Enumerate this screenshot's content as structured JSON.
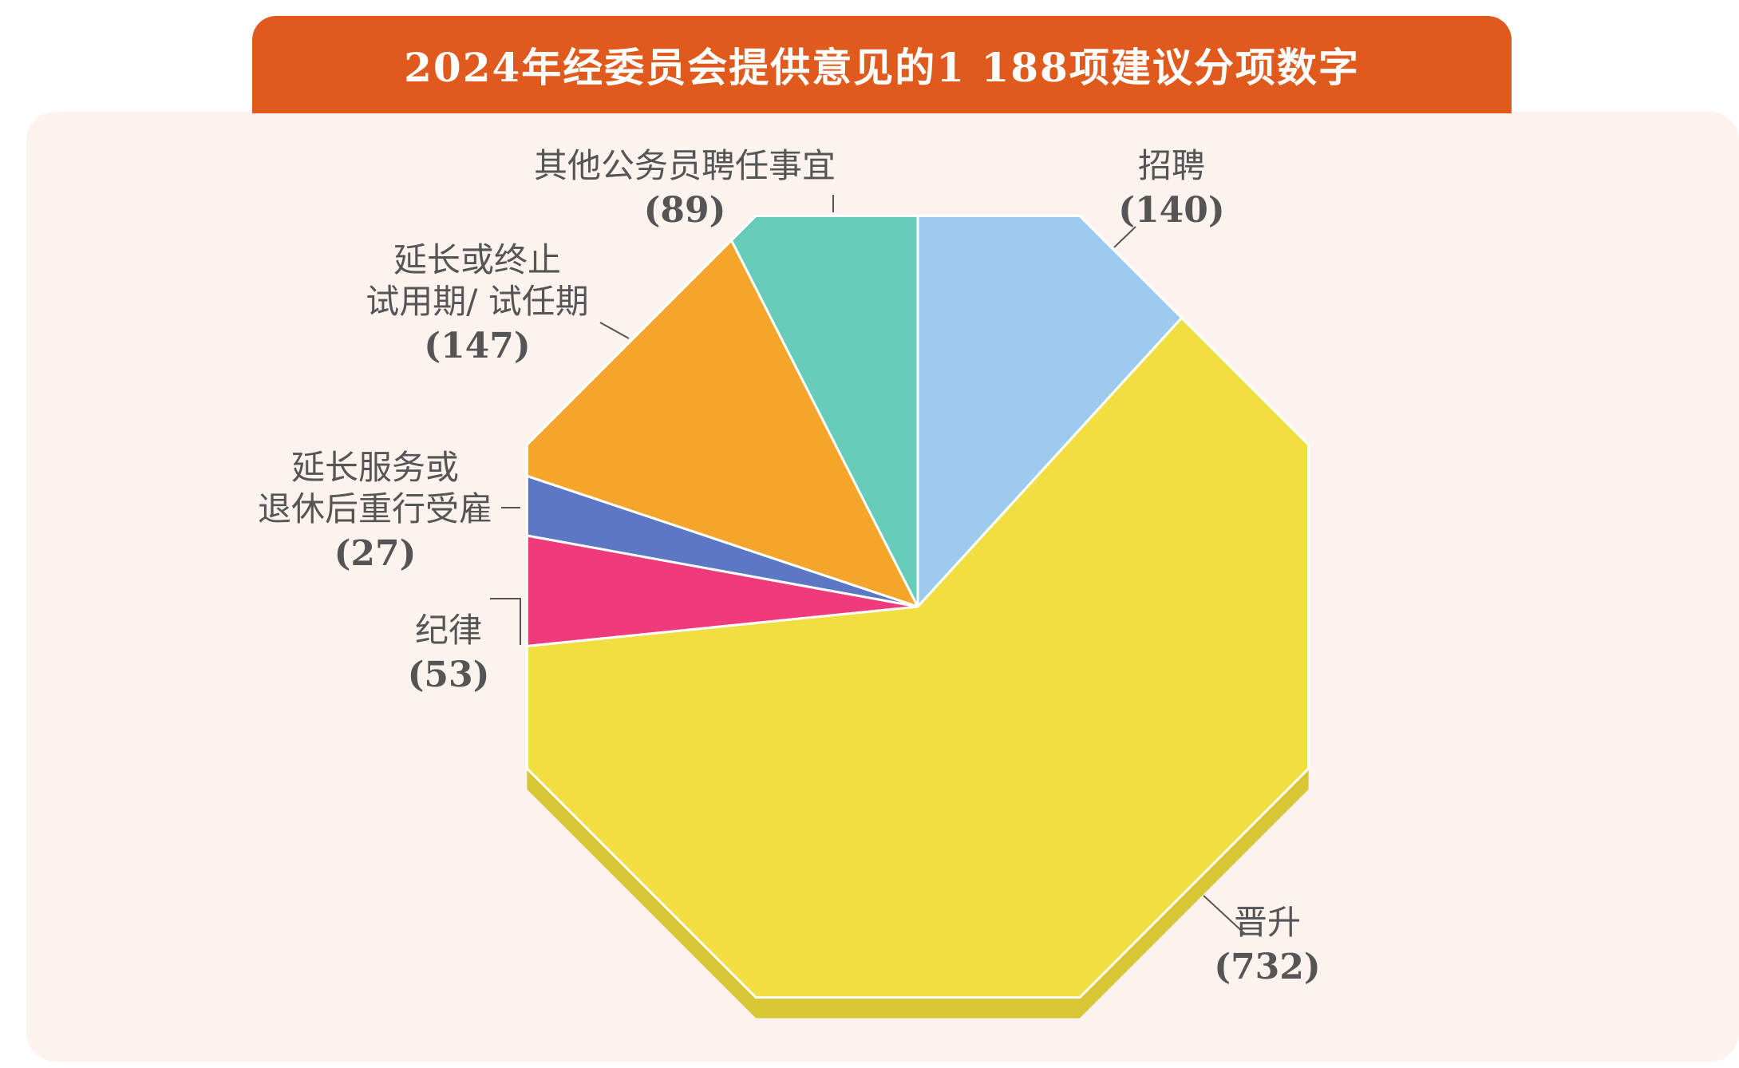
{
  "title": "2024年经委员会提供意见的1 188项建议分项数字",
  "chart_data": {
    "type": "pie",
    "slices": [
      {
        "label_lines": [
          "招聘"
        ],
        "value_text": "(140)",
        "value": 140,
        "color": "#9ccbee"
      },
      {
        "label_lines": [
          "晋升"
        ],
        "value_text": "(732)",
        "value": 732,
        "color": "#f1df41"
      },
      {
        "label_lines": [
          "纪律"
        ],
        "value_text": "(53)",
        "value": 53,
        "color": "#ef3a7b"
      },
      {
        "label_lines": [
          "延长服务或",
          "退休后重行受雇"
        ],
        "value_text": "(27)",
        "value": 27,
        "color": "#5c78c4"
      },
      {
        "label_lines": [
          "延长或终止",
          "试用期/ 试任期"
        ],
        "value_text": "(147)",
        "value": 147,
        "color": "#f6a52b"
      },
      {
        "label_lines": [
          "其他公务员聘任事宜"
        ],
        "value_text": "(89)",
        "value": 89,
        "color": "#68ccbb"
      }
    ],
    "shadow_color": "#d9c634",
    "start_angle_deg": 0,
    "shape": "octagon"
  }
}
